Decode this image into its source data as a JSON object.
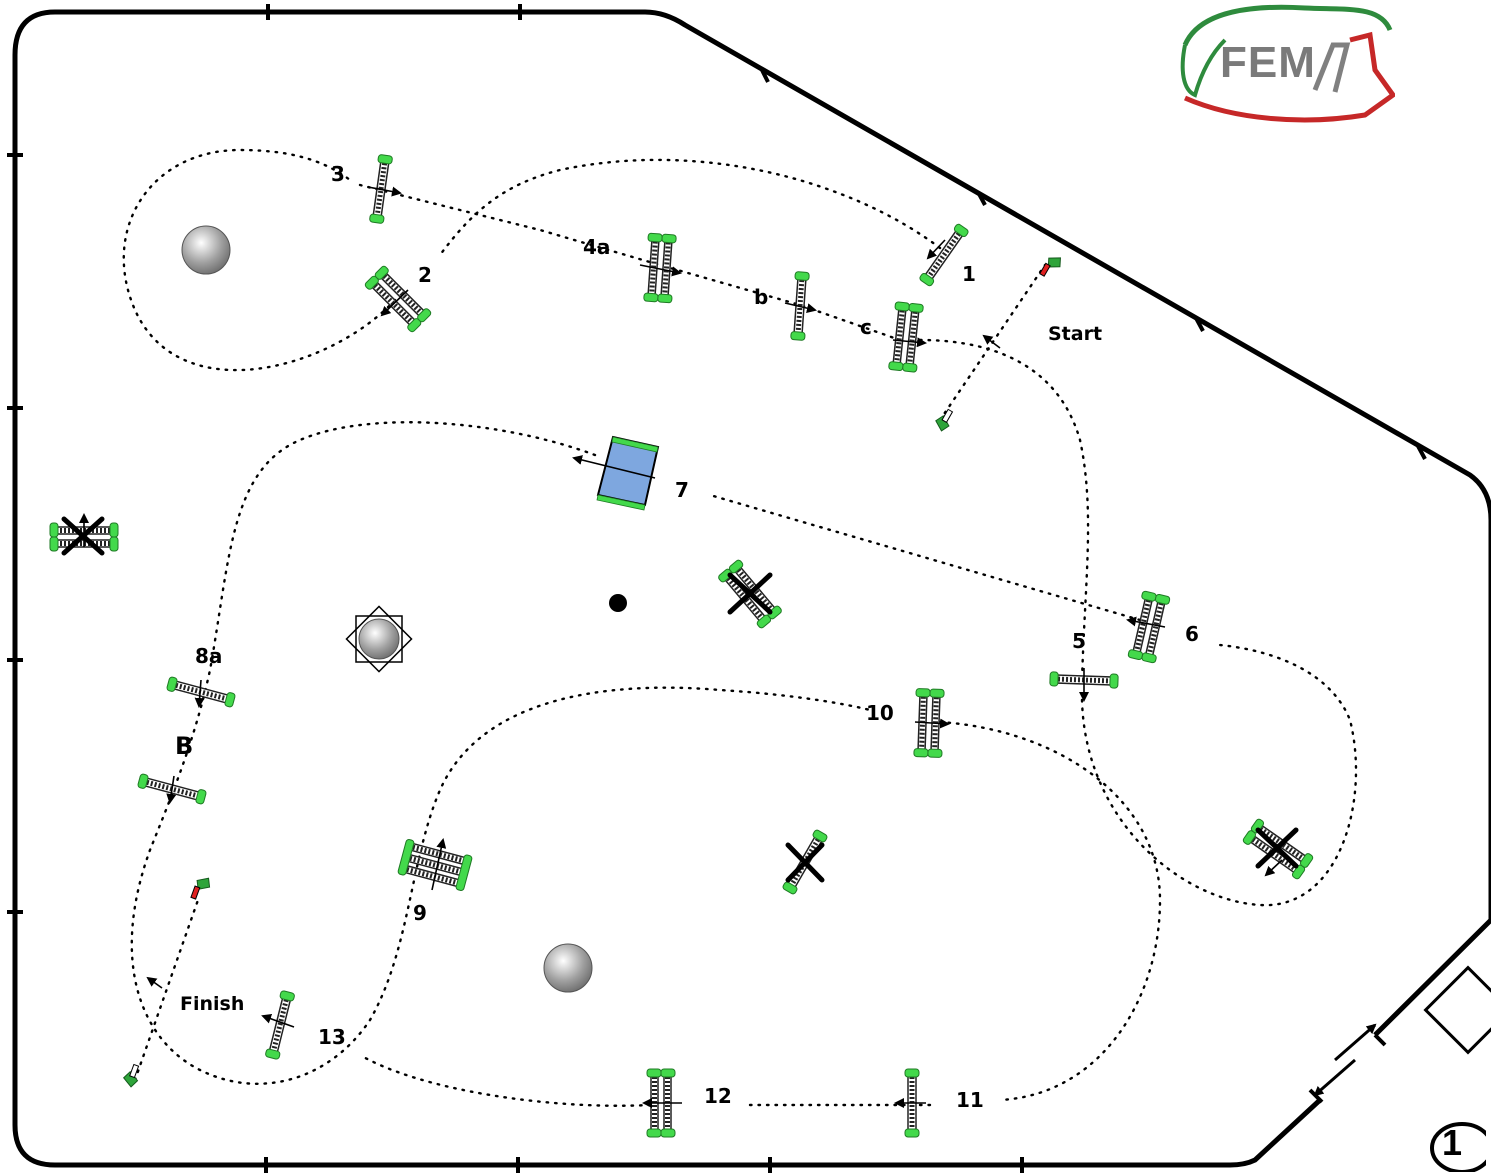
{
  "logo": {
    "text": "FEM",
    "colors": {
      "green": "#2e8b3d",
      "red": "#c62828",
      "grey": "#808080"
    }
  },
  "labels": {
    "l1": "1",
    "l2": "2",
    "l3": "3",
    "l4a": "4a",
    "l4b": "b",
    "l4c": "c",
    "l5": "5",
    "l6": "6",
    "l7": "7",
    "l8a": "8a",
    "l8b": "B",
    "l9": "9",
    "l10": "10",
    "l11": "11",
    "l12": "12",
    "l13": "13",
    "start": "Start",
    "finish": "Finish"
  },
  "map_number": "1",
  "colors": {
    "stand": "#43d94b",
    "water": "#7ea7df",
    "flag_red": "#e02020",
    "flag_white": "#ffffff"
  }
}
